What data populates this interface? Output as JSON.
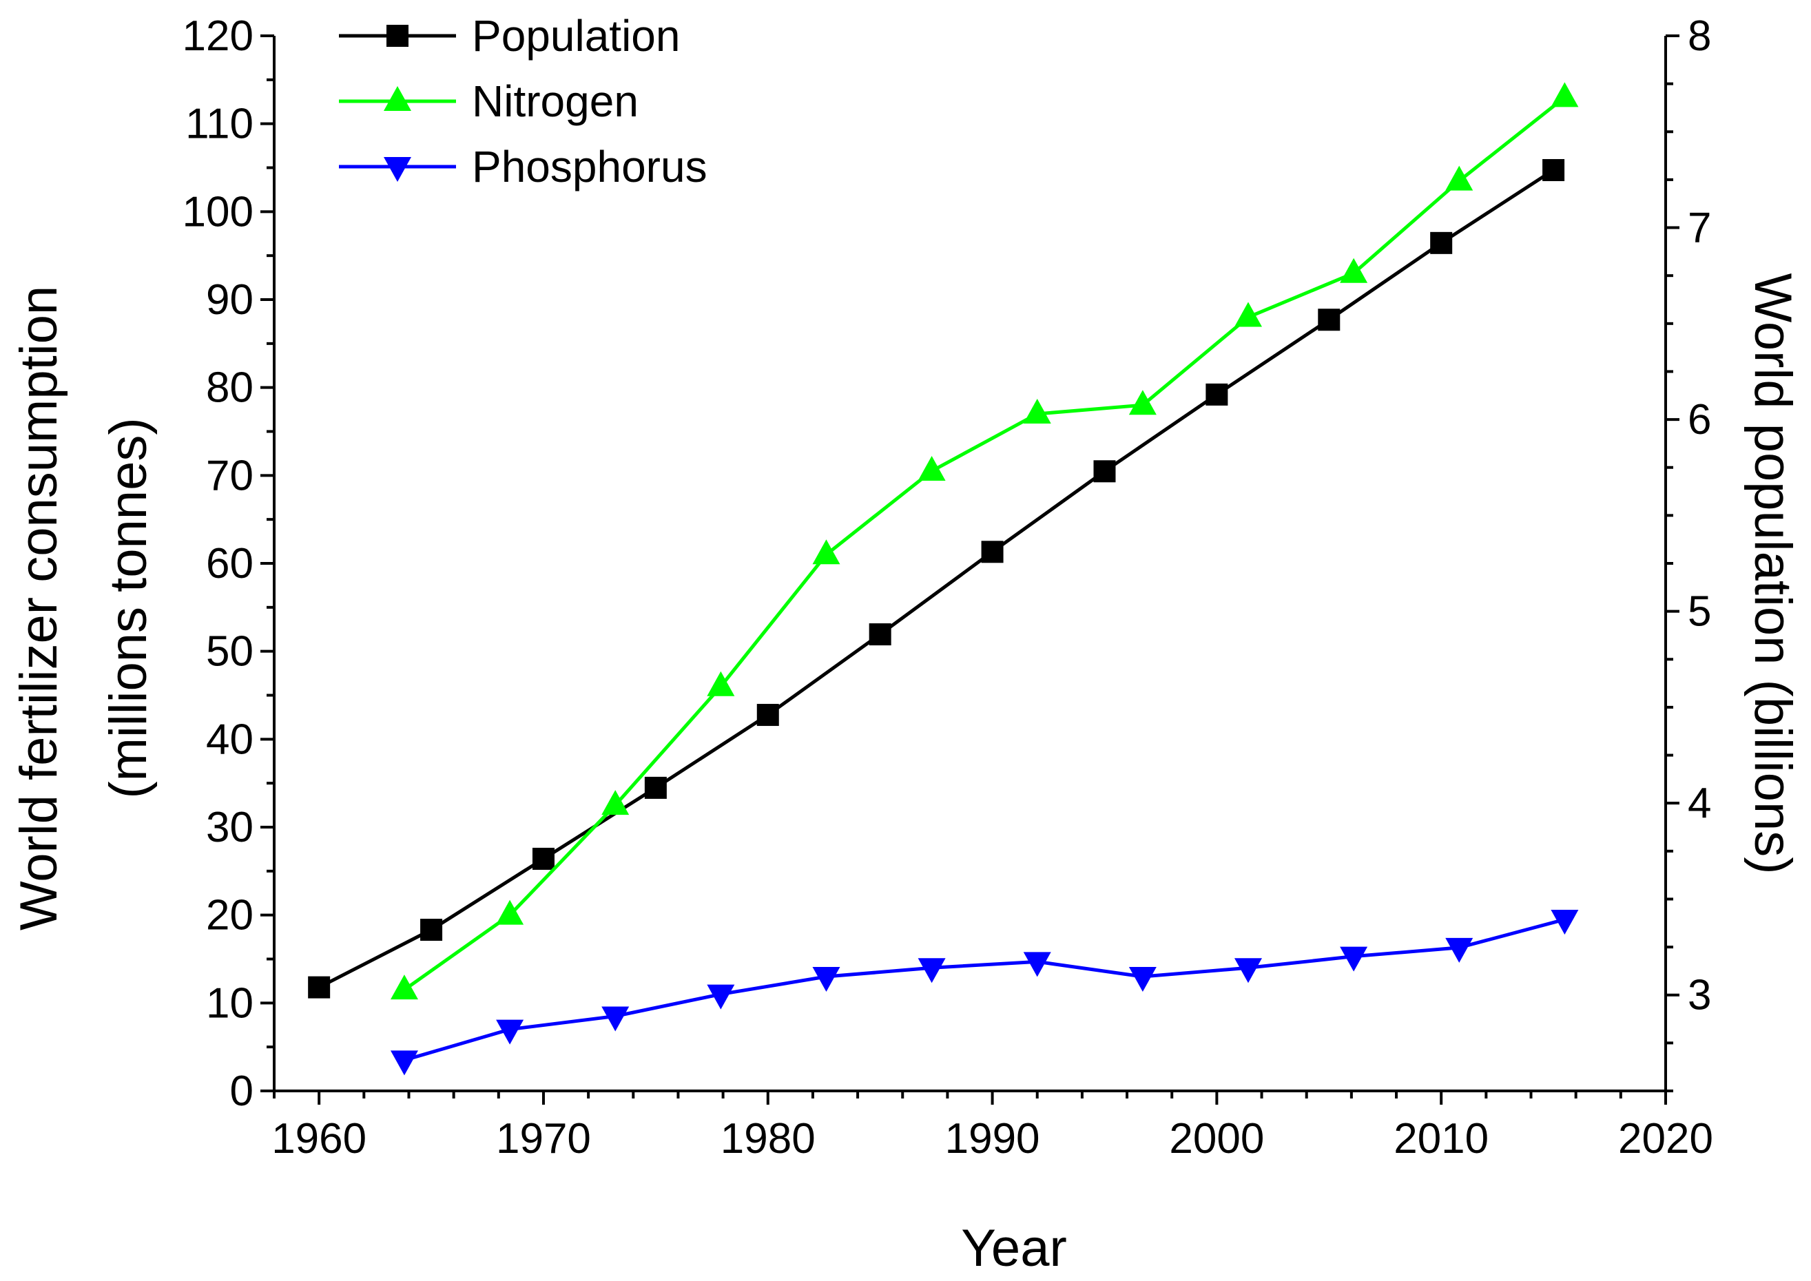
{
  "chart_data": {
    "type": "line",
    "title": "",
    "xlabel": "Year",
    "ylabel_left_line1": "World fertilizer consumption",
    "ylabel_left_line2": "(millions tonnes)",
    "ylabel_right": "World population (billions)",
    "xlim": [
      1958,
      2020
    ],
    "xticks": [
      1960,
      1970,
      1980,
      1990,
      2000,
      2010,
      2020
    ],
    "ylim_left": [
      0,
      120
    ],
    "yticks_left": [
      0,
      10,
      20,
      30,
      40,
      50,
      60,
      70,
      80,
      90,
      100,
      110,
      120
    ],
    "ylim_right": [
      2.5,
      8
    ],
    "yticks_right": [
      3,
      4,
      5,
      6,
      7,
      8
    ],
    "legend_position": "top-left",
    "colors": {
      "population": "#000000",
      "nitrogen": "#00ff00",
      "phosphorus": "#0000ff"
    },
    "series": [
      {
        "key": "population",
        "name": "Population",
        "axis": "right",
        "marker": "square",
        "x": [
          1960,
          1965,
          1970,
          1975,
          1980,
          1985,
          1990,
          1995,
          2000,
          2005,
          2010,
          2015
        ],
        "values": [
          3.04,
          3.34,
          3.71,
          4.08,
          4.46,
          4.88,
          5.31,
          5.73,
          6.13,
          6.52,
          6.92,
          7.3
        ]
      },
      {
        "key": "nitrogen",
        "name": "Nitrogen",
        "axis": "left",
        "marker": "triangle-up",
        "x": [
          1963.8,
          1968.5,
          1973.2,
          1977.9,
          1982.6,
          1987.3,
          1992.0,
          1996.7,
          2001.4,
          2006.1,
          2010.8,
          2015.5
        ],
        "values": [
          11.5,
          20,
          32.5,
          46,
          61,
          70.5,
          77,
          78,
          88,
          93,
          103.5,
          113
        ]
      },
      {
        "key": "phosphorus",
        "name": "Phosphorus",
        "axis": "left",
        "marker": "triangle-down",
        "x": [
          1963.8,
          1968.5,
          1973.2,
          1977.9,
          1982.6,
          1987.3,
          1992.0,
          1996.7,
          2001.4,
          2006.1,
          2010.8,
          2015.5
        ],
        "values": [
          3.5,
          7,
          8.5,
          11,
          13,
          14,
          14.7,
          13,
          14,
          15.3,
          16.3,
          19.5
        ]
      }
    ]
  }
}
